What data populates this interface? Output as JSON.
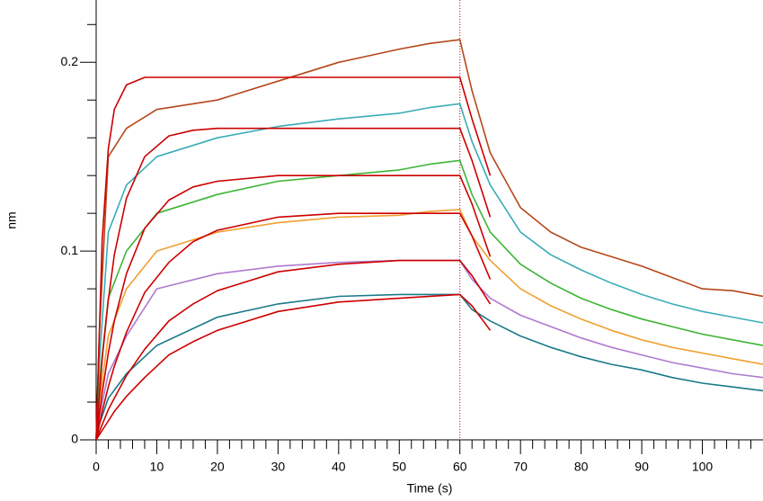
{
  "chart_data": {
    "type": "line",
    "xlabel": "Time (s)",
    "ylabel": "nm",
    "xlim": [
      0,
      110
    ],
    "ylim": [
      0,
      0.233
    ],
    "xticks": [
      0,
      10,
      20,
      30,
      40,
      50,
      60,
      70,
      80,
      90,
      100
    ],
    "xminorticks": [
      2,
      4,
      6,
      8,
      12,
      14,
      16,
      18,
      22,
      24,
      26,
      28,
      32,
      34,
      36,
      38,
      42,
      44,
      46,
      48,
      52,
      54,
      56,
      58,
      62,
      64,
      66,
      68,
      72,
      74,
      76,
      78,
      82,
      84,
      86,
      88,
      92,
      94,
      96,
      98,
      102,
      104,
      106,
      108
    ],
    "yticks": [
      0,
      0.1,
      0.2
    ],
    "yminorticks": [
      0.02,
      0.04,
      0.06,
      0.08,
      0.12,
      0.14,
      0.16,
      0.18,
      0.22
    ],
    "vline": {
      "x": 60,
      "color": "#cc0000"
    },
    "series": [
      {
        "color": "#b5471a",
        "x": [
          0,
          0.5,
          2,
          5,
          10,
          20,
          30,
          40,
          50,
          55,
          60,
          62,
          65,
          70,
          75,
          80,
          85,
          90,
          95,
          100,
          105,
          110
        ],
        "values": [
          0,
          0.055,
          0.15,
          0.165,
          0.175,
          0.18,
          0.19,
          0.2,
          0.207,
          0.21,
          0.212,
          0.185,
          0.152,
          0.123,
          0.11,
          0.102,
          0.097,
          0.092,
          0.086,
          0.08,
          0.079,
          0.076
        ]
      },
      {
        "color": "#3aacb8",
        "x": [
          0,
          0.5,
          2,
          5,
          10,
          20,
          30,
          40,
          50,
          55,
          60,
          62,
          65,
          70,
          75,
          80,
          85,
          90,
          95,
          100,
          105,
          110
        ],
        "values": [
          0,
          0.04,
          0.11,
          0.135,
          0.15,
          0.16,
          0.166,
          0.17,
          0.173,
          0.176,
          0.178,
          0.158,
          0.135,
          0.11,
          0.098,
          0.09,
          0.083,
          0.077,
          0.072,
          0.068,
          0.065,
          0.062
        ]
      },
      {
        "color": "#3cb534",
        "x": [
          0,
          0.5,
          2,
          5,
          10,
          20,
          30,
          40,
          50,
          55,
          60,
          62,
          65,
          70,
          75,
          80,
          85,
          90,
          95,
          100,
          105,
          110
        ],
        "values": [
          0,
          0.03,
          0.075,
          0.1,
          0.12,
          0.13,
          0.137,
          0.14,
          0.143,
          0.146,
          0.148,
          0.13,
          0.11,
          0.093,
          0.083,
          0.075,
          0.069,
          0.064,
          0.06,
          0.056,
          0.053,
          0.05
        ]
      },
      {
        "color": "#f0a030",
        "x": [
          0,
          0.5,
          2,
          5,
          10,
          20,
          30,
          40,
          50,
          55,
          60,
          62,
          65,
          70,
          75,
          80,
          85,
          90,
          95,
          100,
          105,
          110
        ],
        "values": [
          0,
          0.02,
          0.055,
          0.08,
          0.1,
          0.11,
          0.115,
          0.118,
          0.119,
          0.121,
          0.122,
          0.108,
          0.095,
          0.08,
          0.071,
          0.064,
          0.058,
          0.053,
          0.049,
          0.046,
          0.043,
          0.04
        ]
      },
      {
        "color": "#b07ad0",
        "x": [
          0,
          0.5,
          2,
          5,
          10,
          20,
          30,
          40,
          50,
          55,
          60,
          62,
          65,
          70,
          75,
          80,
          85,
          90,
          95,
          100,
          105,
          110
        ],
        "values": [
          0,
          0.012,
          0.035,
          0.055,
          0.08,
          0.088,
          0.092,
          0.094,
          0.095,
          0.095,
          0.095,
          0.085,
          0.075,
          0.066,
          0.06,
          0.054,
          0.049,
          0.045,
          0.041,
          0.038,
          0.035,
          0.033
        ]
      },
      {
        "color": "#1a7a8a",
        "x": [
          0,
          0.5,
          2,
          5,
          10,
          20,
          30,
          40,
          50,
          55,
          60,
          62,
          65,
          70,
          75,
          80,
          85,
          90,
          95,
          100,
          105,
          110
        ],
        "values": [
          0,
          0.008,
          0.022,
          0.035,
          0.05,
          0.065,
          0.072,
          0.076,
          0.077,
          0.077,
          0.077,
          0.069,
          0.063,
          0.055,
          0.049,
          0.044,
          0.04,
          0.037,
          0.033,
          0.03,
          0.028,
          0.026
        ]
      },
      {
        "color": "#cc0000",
        "x": [
          0,
          1,
          2,
          3,
          5,
          8,
          12,
          20,
          30,
          40,
          50,
          60,
          62,
          65
        ],
        "values": [
          0,
          0.106,
          0.154,
          0.175,
          0.188,
          0.192,
          0.192,
          0.192,
          0.192,
          0.192,
          0.192,
          0.192,
          0.17,
          0.14
        ]
      },
      {
        "color": "#cc0000",
        "x": [
          0,
          1,
          2,
          3,
          5,
          8,
          12,
          16,
          20,
          30,
          40,
          50,
          60,
          62,
          65
        ],
        "values": [
          0,
          0.043,
          0.074,
          0.098,
          0.128,
          0.15,
          0.161,
          0.164,
          0.165,
          0.165,
          0.165,
          0.165,
          0.165,
          0.148,
          0.118
        ]
      },
      {
        "color": "#cc0000",
        "x": [
          0,
          1,
          2,
          3,
          5,
          8,
          12,
          16,
          20,
          30,
          40,
          50,
          60,
          62,
          65
        ],
        "values": [
          0,
          0.025,
          0.046,
          0.063,
          0.088,
          0.112,
          0.127,
          0.134,
          0.137,
          0.14,
          0.14,
          0.14,
          0.14,
          0.125,
          0.097
        ]
      },
      {
        "color": "#cc0000",
        "x": [
          0,
          1,
          2,
          3,
          5,
          8,
          12,
          16,
          20,
          30,
          40,
          50,
          60,
          62,
          65
        ],
        "values": [
          0,
          0.015,
          0.028,
          0.039,
          0.057,
          0.078,
          0.094,
          0.105,
          0.111,
          0.118,
          0.12,
          0.12,
          0.12,
          0.108,
          0.085
        ]
      },
      {
        "color": "#cc0000",
        "x": [
          0,
          1,
          2,
          3,
          5,
          8,
          12,
          16,
          20,
          30,
          40,
          50,
          60,
          62,
          65
        ],
        "values": [
          0,
          0.008,
          0.016,
          0.022,
          0.034,
          0.048,
          0.063,
          0.072,
          0.079,
          0.089,
          0.093,
          0.095,
          0.095,
          0.087,
          0.072
        ]
      },
      {
        "color": "#cc0000",
        "x": [
          0,
          1,
          2,
          3,
          5,
          8,
          12,
          16,
          20,
          30,
          40,
          50,
          60,
          62,
          65
        ],
        "values": [
          0,
          0.005,
          0.01,
          0.015,
          0.023,
          0.033,
          0.045,
          0.052,
          0.058,
          0.068,
          0.073,
          0.075,
          0.077,
          0.071,
          0.058
        ]
      }
    ]
  }
}
